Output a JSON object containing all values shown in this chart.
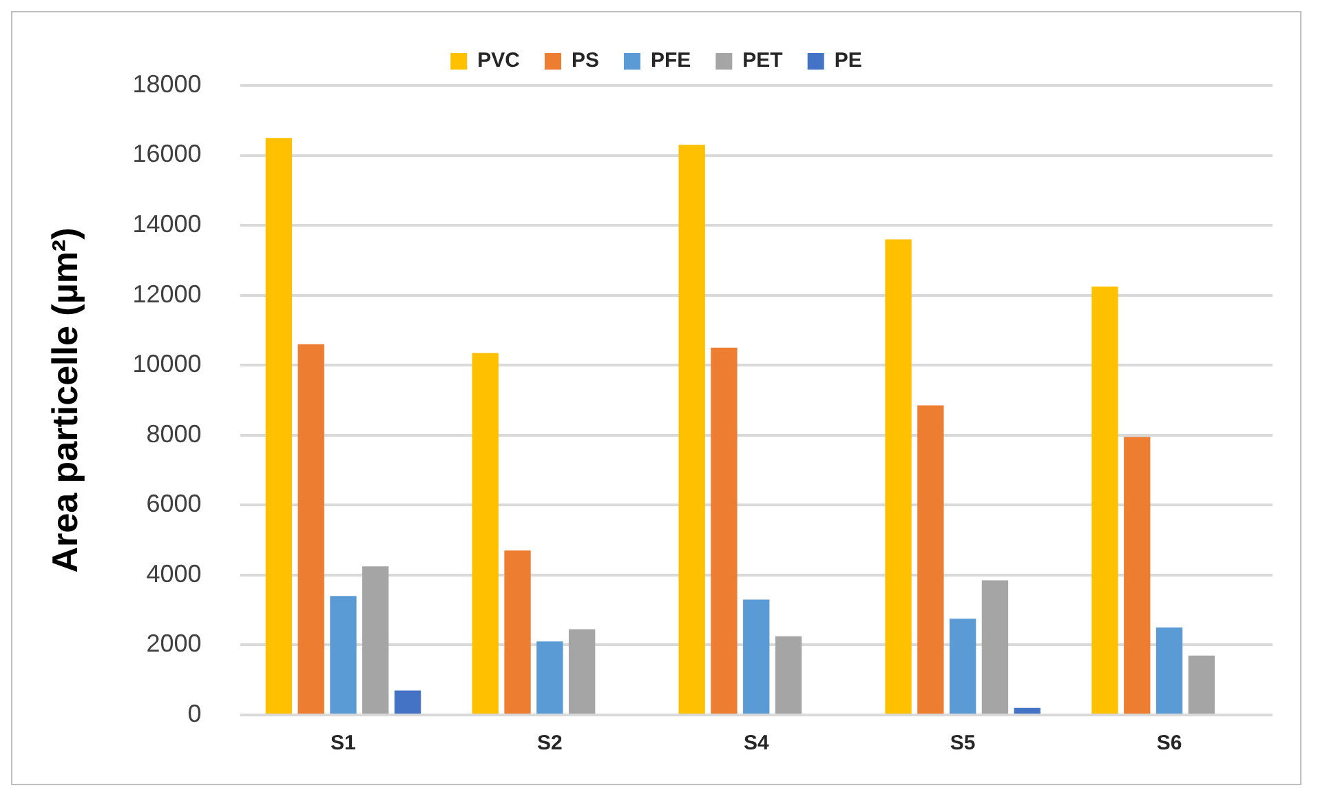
{
  "chart_data": {
    "type": "bar",
    "ylabel": "Area particelle (µm²)",
    "categories": [
      "S1",
      "S2",
      "S4",
      "S5",
      "S6"
    ],
    "series": [
      {
        "name": "PVC",
        "color": "#ffc000",
        "values": [
          16500,
          10350,
          16300,
          13600,
          12250
        ]
      },
      {
        "name": "PS",
        "color": "#ed7d31",
        "values": [
          10600,
          4700,
          10500,
          8850,
          7950
        ]
      },
      {
        "name": "PFE",
        "color": "#5b9bd5",
        "values": [
          3400,
          2100,
          3300,
          2750,
          2500
        ]
      },
      {
        "name": "PET",
        "color": "#a5a5a5",
        "values": [
          4250,
          2450,
          2250,
          3850,
          1700
        ]
      },
      {
        "name": "PE",
        "color": "#4472c4",
        "values": [
          700,
          null,
          null,
          200,
          null
        ]
      }
    ],
    "ylim": [
      0,
      18000
    ],
    "yticks": [
      0,
      2000,
      4000,
      6000,
      8000,
      10000,
      12000,
      14000,
      16000,
      18000
    ],
    "grid": "y",
    "legend": "top"
  }
}
